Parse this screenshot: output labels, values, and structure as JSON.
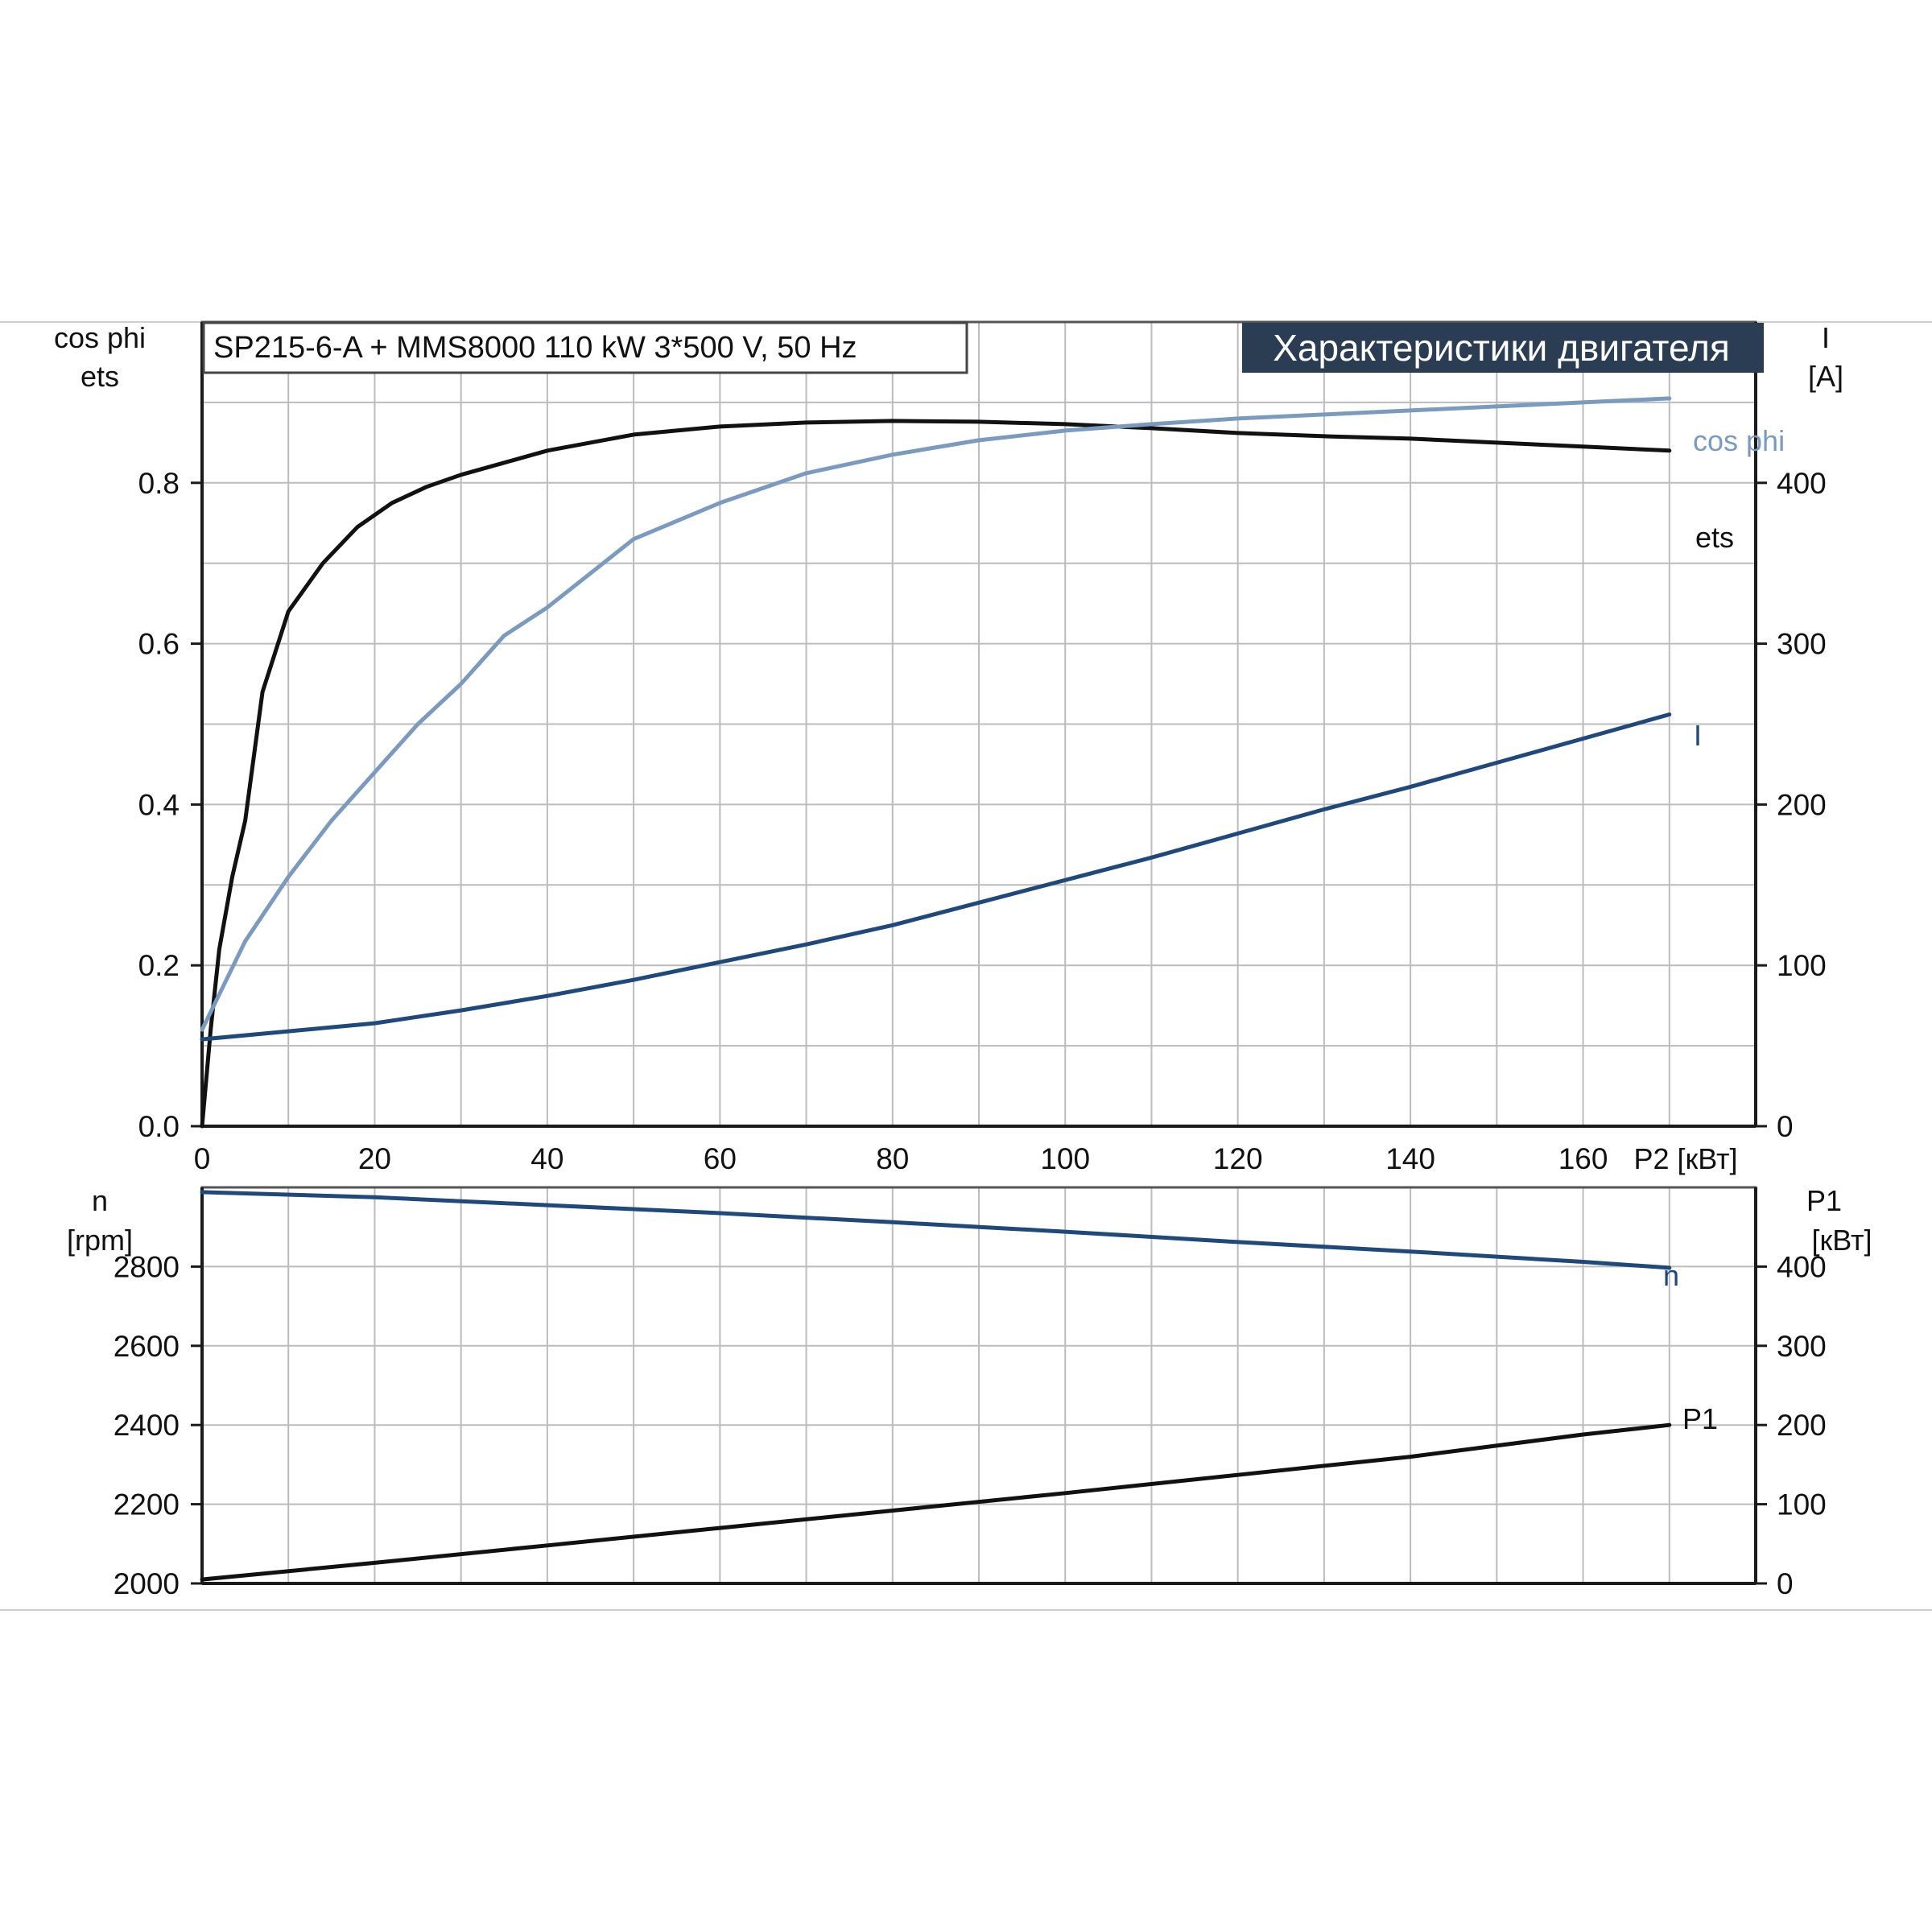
{
  "info_label": "SP215-6-A + MMS8000   110 kW   3*500 V, 50 Hz",
  "header_label": "Характеристики двигателя",
  "colors": {
    "ets": "#111111",
    "cos_phi": "#7a9bbf",
    "I": "#1f497d",
    "n": "#1f497d",
    "P1": "#111111",
    "header_bg": "#2b3d53"
  },
  "chart_data": [
    {
      "type": "line",
      "xlabel": "P2 [кВт]",
      "xlim": [
        0,
        180
      ],
      "xticks": [
        0,
        20,
        40,
        60,
        80,
        100,
        120,
        140,
        160
      ],
      "xtick_labels": [
        "0",
        "20",
        "40",
        "60",
        "80",
        "100",
        "120",
        "140",
        "160"
      ],
      "left_axis": {
        "label_line1": "cos phi",
        "label_line2": "ets",
        "range": [
          0,
          1.0
        ],
        "ticks": [
          0.0,
          0.2,
          0.4,
          0.6,
          0.8
        ],
        "tick_labels": [
          "0.0",
          "0.2",
          "0.4",
          "0.6",
          "0.8"
        ]
      },
      "right_axis": {
        "label_line1": "I",
        "label_line2": "[A]",
        "range": [
          0,
          500
        ],
        "ticks": [
          0,
          100,
          200,
          300,
          400
        ],
        "tick_labels": [
          "0",
          "100",
          "200",
          "300",
          "400"
        ]
      },
      "grid": true,
      "series": [
        {
          "name": "ets",
          "axis": "left",
          "x": [
            0,
            1,
            2,
            3.5,
            5,
            7,
            10,
            14,
            18,
            22,
            26,
            30,
            35,
            40,
            50,
            60,
            70,
            80,
            90,
            100,
            110,
            120,
            130,
            140,
            150,
            160,
            170
          ],
          "y": [
            0.0,
            0.12,
            0.22,
            0.31,
            0.38,
            0.54,
            0.64,
            0.7,
            0.745,
            0.775,
            0.795,
            0.81,
            0.825,
            0.84,
            0.86,
            0.87,
            0.875,
            0.877,
            0.876,
            0.873,
            0.868,
            0.862,
            0.858,
            0.855,
            0.85,
            0.845,
            0.84
          ]
        },
        {
          "name": "cos phi",
          "axis": "left",
          "x": [
            0,
            5,
            10,
            15,
            20,
            25,
            30,
            35,
            40,
            50,
            60,
            70,
            80,
            90,
            100,
            110,
            120,
            130,
            140,
            150,
            160,
            170
          ],
          "y": [
            0.12,
            0.23,
            0.31,
            0.38,
            0.44,
            0.5,
            0.55,
            0.61,
            0.645,
            0.73,
            0.775,
            0.812,
            0.835,
            0.853,
            0.865,
            0.873,
            0.88,
            0.885,
            0.89,
            0.895,
            0.9,
            0.905
          ]
        },
        {
          "name": "I",
          "axis": "right",
          "x": [
            0,
            10,
            20,
            30,
            40,
            50,
            60,
            70,
            80,
            90,
            100,
            110,
            120,
            130,
            140,
            150,
            160,
            170
          ],
          "y": [
            54,
            59,
            64,
            72,
            81,
            91,
            102,
            113,
            125,
            139,
            153,
            167,
            182,
            197,
            211,
            226,
            241,
            256
          ]
        }
      ]
    },
    {
      "type": "line",
      "xlim": [
        0,
        180
      ],
      "left_axis": {
        "label_line1": "n",
        "label_line2": "[rpm]",
        "range": [
          2000,
          3000
        ],
        "ticks": [
          2000,
          2200,
          2400,
          2600,
          2800
        ],
        "tick_labels": [
          "2000",
          "2200",
          "2400",
          "2600",
          "2800"
        ]
      },
      "right_axis": {
        "label_line1": "P1",
        "label_line2": "[кВт]",
        "range": [
          0,
          500
        ],
        "ticks": [
          0,
          100,
          200,
          300,
          400
        ],
        "tick_labels": [
          "0",
          "100",
          "200",
          "300",
          "400"
        ]
      },
      "grid": true,
      "series": [
        {
          "name": "n",
          "axis": "left",
          "x": [
            0,
            20,
            40,
            60,
            80,
            100,
            120,
            140,
            160,
            170
          ],
          "y": [
            2988,
            2975,
            2955,
            2935,
            2912,
            2888,
            2862,
            2838,
            2812,
            2797
          ]
        },
        {
          "name": "P1",
          "axis": "right",
          "x": [
            0,
            20,
            40,
            60,
            80,
            100,
            120,
            140,
            160,
            170
          ],
          "y": [
            5,
            26,
            48,
            70,
            92,
            114,
            137,
            160,
            188,
            200
          ]
        }
      ]
    }
  ]
}
